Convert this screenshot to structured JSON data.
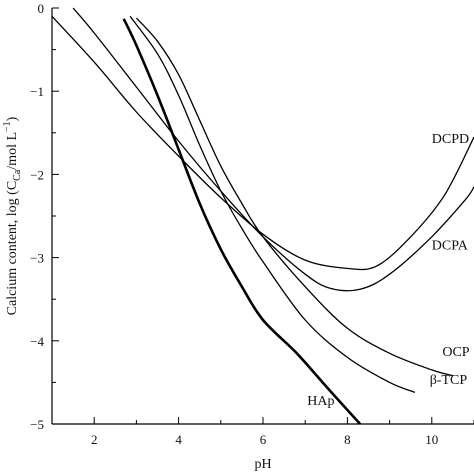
{
  "chart_data": {
    "type": "line",
    "title": "",
    "xlabel": "pH",
    "ylabel": "Calcium content, log (C",
    "ylabel_sub": "Ca",
    "ylabel_unit": "/mol L",
    "ylabel_sup": "−1",
    "ylabel_close": ")",
    "xlim": [
      1,
      11
    ],
    "ylim": [
      -5,
      0
    ],
    "grid": false,
    "legend": "none",
    "x_ticks": [
      2,
      4,
      6,
      8,
      10
    ],
    "x_tick_labels": [
      "2",
      "4",
      "6",
      "8",
      "10"
    ],
    "y_ticks": [
      0,
      -1,
      -2,
      -3,
      -4,
      -5
    ],
    "y_tick_labels": [
      "0",
      "−1",
      "−2",
      "−3",
      "−4",
      "−5"
    ],
    "series": [
      {
        "name": "DCPD",
        "points": [
          [
            1.0,
            -0.1
          ],
          [
            2.0,
            -0.65
          ],
          [
            3.0,
            -1.25
          ],
          [
            4.0,
            -1.78
          ],
          [
            5.0,
            -2.28
          ],
          [
            6.0,
            -2.72
          ],
          [
            7.0,
            -3.03
          ],
          [
            8.0,
            -3.13
          ],
          [
            8.7,
            -3.1
          ],
          [
            9.5,
            -2.75
          ],
          [
            10.3,
            -2.25
          ],
          [
            11.0,
            -1.55
          ]
        ]
      },
      {
        "name": "DCPA",
        "points": [
          [
            1.5,
            0.0
          ],
          [
            2.0,
            -0.3
          ],
          [
            3.0,
            -0.95
          ],
          [
            4.0,
            -1.6
          ],
          [
            5.0,
            -2.2
          ],
          [
            6.0,
            -2.75
          ],
          [
            7.0,
            -3.2
          ],
          [
            7.6,
            -3.37
          ],
          [
            8.3,
            -3.38
          ],
          [
            9.0,
            -3.2
          ],
          [
            10.0,
            -2.75
          ],
          [
            10.8,
            -2.3
          ],
          [
            11.0,
            -2.15
          ]
        ]
      },
      {
        "name": "OCP",
        "points": [
          [
            3.0,
            -0.12
          ],
          [
            3.5,
            -0.4
          ],
          [
            4.0,
            -0.8
          ],
          [
            4.5,
            -1.35
          ],
          [
            5.0,
            -1.9
          ],
          [
            5.5,
            -2.35
          ],
          [
            6.0,
            -2.75
          ],
          [
            7.0,
            -3.35
          ],
          [
            8.0,
            -3.85
          ],
          [
            9.0,
            -4.15
          ],
          [
            10.0,
            -4.35
          ],
          [
            10.5,
            -4.42
          ]
        ]
      },
      {
        "name": "β-TCP",
        "points": [
          [
            2.85,
            -0.1
          ],
          [
            3.5,
            -0.55
          ],
          [
            4.0,
            -1.05
          ],
          [
            4.5,
            -1.65
          ],
          [
            5.0,
            -2.2
          ],
          [
            5.5,
            -2.65
          ],
          [
            6.0,
            -3.05
          ],
          [
            7.0,
            -3.75
          ],
          [
            8.0,
            -4.2
          ],
          [
            9.0,
            -4.5
          ],
          [
            9.6,
            -4.62
          ]
        ]
      },
      {
        "name": "HAp",
        "emphasis": "bold",
        "points": [
          [
            2.7,
            -0.13
          ],
          [
            3.0,
            -0.45
          ],
          [
            3.5,
            -1.05
          ],
          [
            4.0,
            -1.7
          ],
          [
            4.5,
            -2.35
          ],
          [
            5.0,
            -2.9
          ],
          [
            5.5,
            -3.35
          ],
          [
            6.0,
            -3.75
          ],
          [
            6.8,
            -4.15
          ],
          [
            7.5,
            -4.55
          ],
          [
            8.3,
            -5.0
          ]
        ]
      }
    ],
    "annotations": [
      {
        "text": "DCPD",
        "x": 10.0,
        "y": -1.62
      },
      {
        "text": "DCPA",
        "x": 10.0,
        "y": -2.9
      },
      {
        "text": "OCP",
        "x": 10.25,
        "y": -4.18
      },
      {
        "text": "β-TCP",
        "x": 9.95,
        "y": -4.52
      },
      {
        "text": "HAp",
        "x": 7.05,
        "y": -4.77
      }
    ],
    "colors": {
      "line": "#000000",
      "axis": "#000000",
      "background": "#ffffff"
    }
  }
}
